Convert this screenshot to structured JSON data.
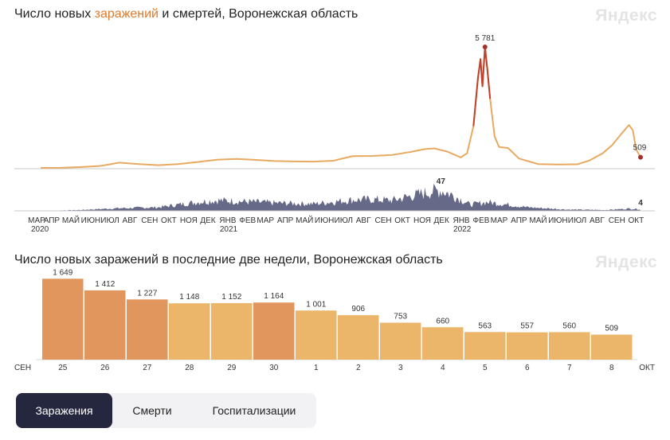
{
  "brand": "Яндекс",
  "top_chart": {
    "title_before": "Число новых ",
    "title_accent": "заражений",
    "title_after": " и смертей, Воронежская область",
    "peak_label": "5 781",
    "last_label": "509",
    "deaths_peak_label": "47",
    "deaths_last_label": "4",
    "months": [
      "МАР",
      "АПР",
      "МАЙ",
      "ИЮН",
      "ИЮЛ",
      "АВГ",
      "СЕН",
      "ОКТ",
      "НОЯ",
      "ДЕК",
      "ЯНВ",
      "ФЕВ",
      "МАР",
      "АПР",
      "МАЙ",
      "ИЮН",
      "ИЮЛ",
      "АВГ",
      "СЕН",
      "ОКТ",
      "НОЯ",
      "ДЕК",
      "ЯНВ",
      "ФЕВ",
      "МАР",
      "АПР",
      "МАЙ",
      "ИЮН",
      "ИЮЛ",
      "АВГ",
      "СЕН",
      "ОКТ"
    ],
    "years": [
      {
        "label": "2020",
        "month_index": 0
      },
      {
        "label": "2021",
        "month_index": 10
      },
      {
        "label": "2022",
        "month_index": 22
      }
    ]
  },
  "chart_data": [
    {
      "type": "area",
      "title": "Число новых заражений и смертей, Воронежская область",
      "x_range": [
        "2020-03",
        "2022-10-08"
      ],
      "series": [
        {
          "name": "заражений",
          "color": "#e8a961",
          "peak_color": "#c0412b",
          "points": [
            [
              "2020-03-15",
              0
            ],
            [
              "2020-04-15",
              5
            ],
            [
              "2020-05-15",
              40
            ],
            [
              "2020-06-15",
              90
            ],
            [
              "2020-07-01",
              170
            ],
            [
              "2020-07-15",
              250
            ],
            [
              "2020-08-15",
              180
            ],
            [
              "2020-09-15",
              130
            ],
            [
              "2020-10-15",
              180
            ],
            [
              "2020-11-15",
              280
            ],
            [
              "2020-12-15",
              390
            ],
            [
              "2021-01-15",
              430
            ],
            [
              "2021-02-15",
              380
            ],
            [
              "2021-03-15",
              330
            ],
            [
              "2021-04-15",
              310
            ],
            [
              "2021-05-15",
              300
            ],
            [
              "2021-06-15",
              340
            ],
            [
              "2021-07-01",
              460
            ],
            [
              "2021-07-15",
              560
            ],
            [
              "2021-08-15",
              570
            ],
            [
              "2021-09-15",
              620
            ],
            [
              "2021-10-15",
              770
            ],
            [
              "2021-11-05",
              900
            ],
            [
              "2021-11-20",
              930
            ],
            [
              "2021-12-10",
              780
            ],
            [
              "2021-12-31",
              500
            ],
            [
              "2022-01-10",
              700
            ],
            [
              "2022-01-20",
              2000
            ],
            [
              "2022-01-27",
              4300
            ],
            [
              "2022-01-31",
              5200
            ],
            [
              "2022-02-03",
              3900
            ],
            [
              "2022-02-07",
              5781
            ],
            [
              "2022-02-11",
              4600
            ],
            [
              "2022-02-15",
              3300
            ],
            [
              "2022-02-22",
              1500
            ],
            [
              "2022-03-01",
              1000
            ],
            [
              "2022-03-15",
              950
            ],
            [
              "2022-04-01",
              450
            ],
            [
              "2022-05-01",
              180
            ],
            [
              "2022-06-01",
              160
            ],
            [
              "2022-07-01",
              170
            ],
            [
              "2022-07-20",
              350
            ],
            [
              "2022-08-10",
              700
            ],
            [
              "2022-08-25",
              1100
            ],
            [
              "2022-09-10",
              1700
            ],
            [
              "2022-09-20",
              2050
            ],
            [
              "2022-09-26",
              1800
            ],
            [
              "2022-10-01",
              900
            ],
            [
              "2022-10-08",
              509
            ]
          ]
        },
        {
          "name": "смертей",
          "color": "#4b4f73",
          "points": [
            [
              "2020-03-15",
              0
            ],
            [
              "2020-05-15",
              2
            ],
            [
              "2020-07-15",
              6
            ],
            [
              "2020-09-15",
              8
            ],
            [
              "2020-11-15",
              20
            ],
            [
              "2020-12-15",
              24
            ],
            [
              "2021-01-15",
              22
            ],
            [
              "2021-02-15",
              20
            ],
            [
              "2021-03-15",
              18
            ],
            [
              "2021-05-15",
              16
            ],
            [
              "2021-07-15",
              25
            ],
            [
              "2021-08-15",
              26
            ],
            [
              "2021-09-15",
              24
            ],
            [
              "2021-10-15",
              34
            ],
            [
              "2021-11-15",
              44
            ],
            [
              "2021-11-30",
              47
            ],
            [
              "2021-12-20",
              35
            ],
            [
              "2022-01-15",
              14
            ],
            [
              "2022-02-10",
              20
            ],
            [
              "2022-03-10",
              15
            ],
            [
              "2022-04-15",
              8
            ],
            [
              "2022-06-15",
              3
            ],
            [
              "2022-08-15",
              2
            ],
            [
              "2022-09-20",
              5
            ],
            [
              "2022-10-08",
              4
            ]
          ]
        }
      ]
    },
    {
      "type": "bar",
      "title": "Число новых заражений в последние две недели, Воронежская область",
      "categories": [
        "25",
        "26",
        "27",
        "28",
        "29",
        "30",
        "1",
        "2",
        "3",
        "4",
        "5",
        "6",
        "7",
        "8"
      ],
      "values": [
        1649,
        1412,
        1227,
        1148,
        1152,
        1164,
        1001,
        906,
        753,
        660,
        563,
        557,
        560,
        509
      ],
      "value_labels": [
        "1 649",
        "1 412",
        "1 227",
        "1 148",
        "1 152",
        "1 164",
        "1 001",
        "906",
        "753",
        "660",
        "563",
        "557",
        "560",
        "509"
      ],
      "weekend": [
        true,
        true,
        false,
        false,
        false,
        false,
        true,
        true,
        false,
        false,
        false,
        false,
        false,
        true
      ],
      "bar_colors": [
        "#e0965d",
        "#e0965d",
        "#e0965d",
        "#ebb56a",
        "#ebb56a",
        "#e0965d",
        "#ebb56a",
        "#ebb56a",
        "#ebb56a",
        "#ebb56a",
        "#ebb56a",
        "#ebb56a",
        "#ebb56a",
        "#ebb56a"
      ],
      "left_month": "СЕН",
      "right_month": "ОКТ",
      "ylim": [
        0,
        1800
      ]
    }
  ],
  "bottom_chart": {
    "title": "Число новых заражений в последние две недели, Воронежская область"
  },
  "tabs": [
    {
      "label": "Заражения",
      "active": true
    },
    {
      "label": "Смерти",
      "active": false
    },
    {
      "label": "Госпитализации",
      "active": false
    }
  ],
  "colors": {
    "accent": "#e07a2e",
    "cases_line": "#e8a961",
    "deaths_area": "#4b4f73",
    "tab_active_bg": "#25273f",
    "weekend_text": "#c0412b"
  }
}
